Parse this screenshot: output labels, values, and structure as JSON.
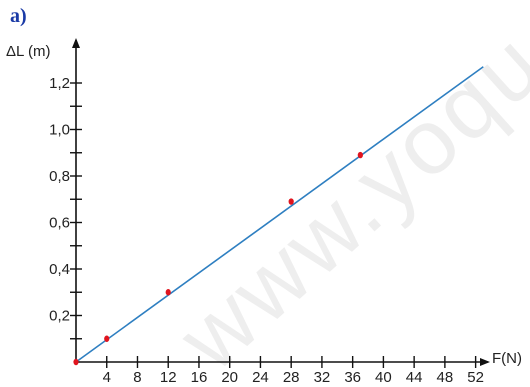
{
  "panel_label": "a)",
  "watermark": "www.yoqu",
  "chart_data": {
    "type": "line",
    "xlabel": "F(N)",
    "ylabel": "ΔL (m)",
    "xlim": [
      0,
      54
    ],
    "ylim": [
      0,
      1.3
    ],
    "x_ticks": [
      4,
      8,
      12,
      16,
      20,
      24,
      28,
      32,
      36,
      40,
      44,
      48,
      52
    ],
    "x_tick_labels": [
      "4",
      "8",
      "12",
      "16",
      "20",
      "24",
      "28",
      "32",
      "36",
      "40",
      "44",
      "48",
      "52"
    ],
    "y_ticks": [
      0.1,
      0.2,
      0.3,
      0.4,
      0.5,
      0.6,
      0.7,
      0.8,
      0.9,
      1.0,
      1.1,
      1.2
    ],
    "y_labeled_ticks": [
      0.2,
      0.4,
      0.6,
      0.8,
      1.0,
      1.2
    ],
    "y_tick_labels": [
      "0,2",
      "0,4",
      "0,6",
      "0,8",
      "1,0",
      "1,2"
    ],
    "series": [
      {
        "type": "line",
        "x": [
          0,
          53
        ],
        "y": [
          0,
          1.27
        ],
        "color": "#2e7fc1"
      },
      {
        "type": "scatter",
        "x": [
          0,
          4,
          12,
          28,
          37
        ],
        "y": [
          0,
          0.1,
          0.3,
          0.69,
          0.89
        ],
        "color": "#e0141e"
      }
    ],
    "grid": false
  }
}
